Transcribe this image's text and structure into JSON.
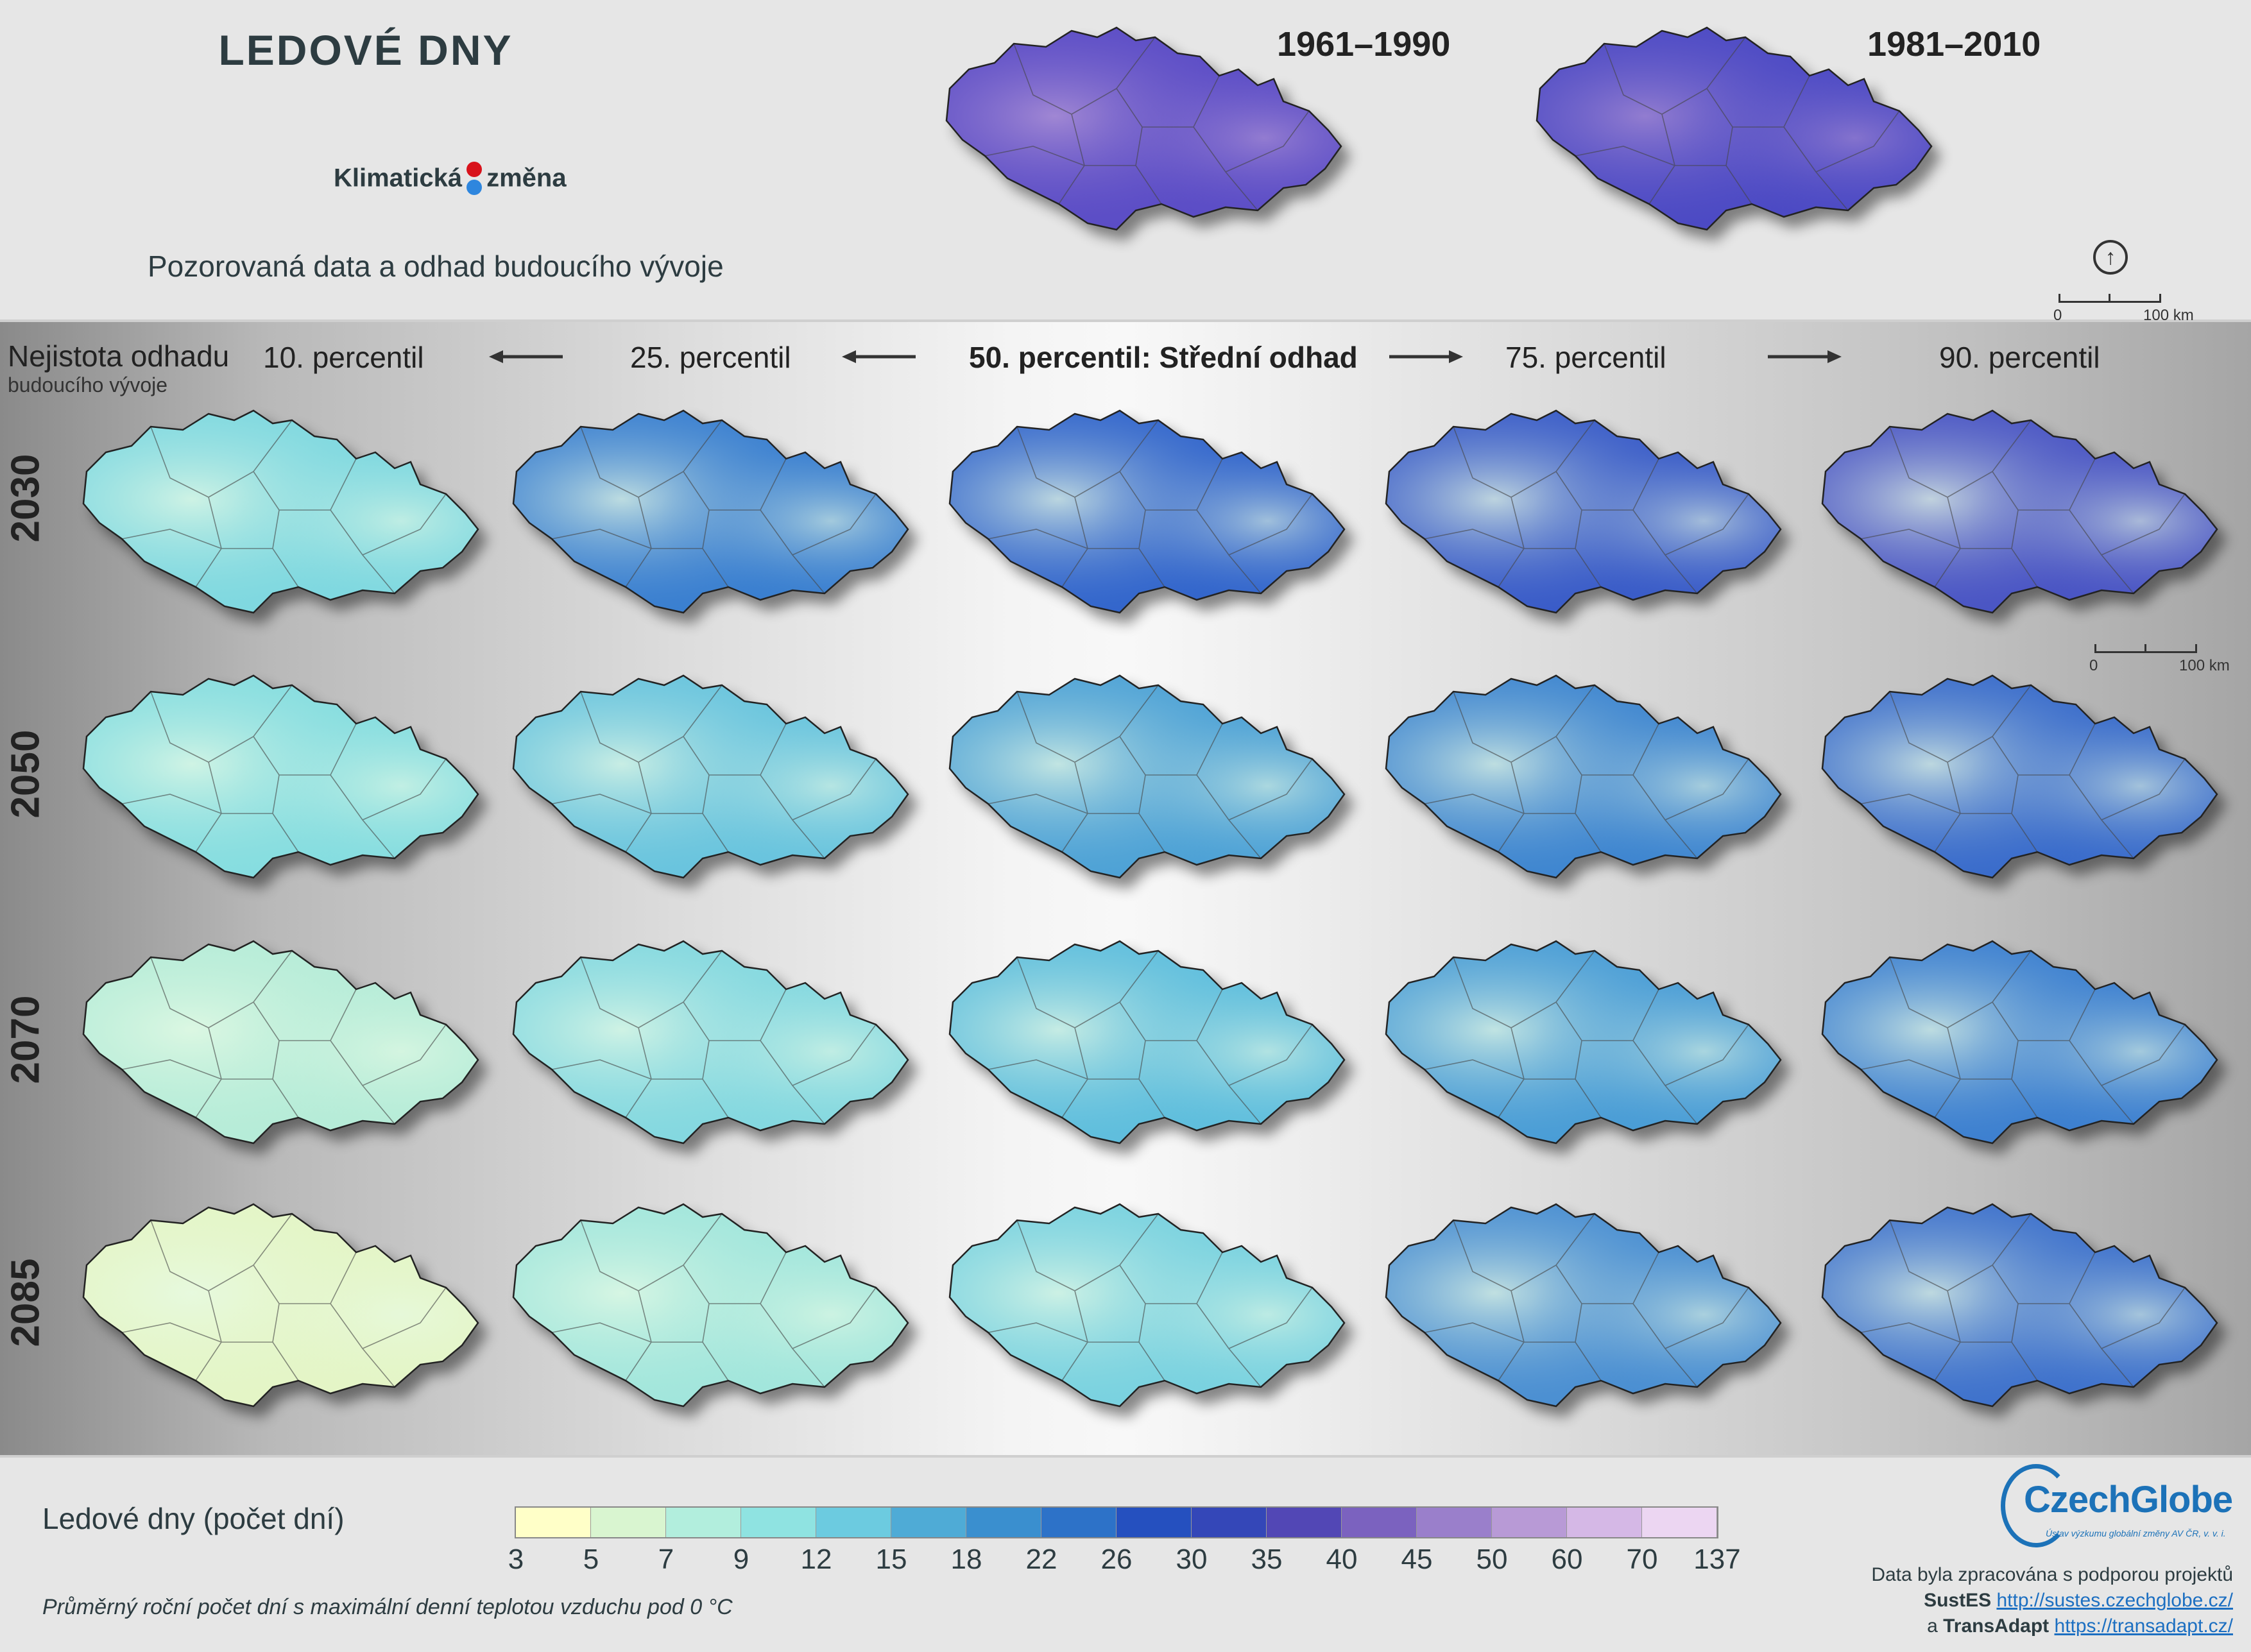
{
  "header": {
    "title": "LEDOVÉ DNY",
    "brand_left": "Klimatická",
    "brand_right": "změna",
    "subtitle": "Pozorovaná data a odhad budoucího vývoje",
    "periods": [
      "1961–1990",
      "1981–2010"
    ],
    "scale": {
      "zero": "0",
      "end": "100 km"
    }
  },
  "grid": {
    "uncertainty_label": "Nejistota odhadu",
    "uncertainty_sub": "budoucího vývoje",
    "percentiles": [
      "10. percentil",
      "25. percentil",
      "50. percentil: Střední odhad",
      "75. percentil",
      "90. percentil"
    ],
    "years": [
      "2030",
      "2050",
      "2070",
      "2085"
    ]
  },
  "legend": {
    "title": "Ledové dny (počet dní)",
    "note": "Průměrný roční počet dní s maximální denní teplotou vzduchu pod 0 °C",
    "ticks": [
      "3",
      "5",
      "7",
      "9",
      "12",
      "15",
      "18",
      "22",
      "26",
      "30",
      "35",
      "40",
      "45",
      "50",
      "60",
      "70",
      "137"
    ],
    "colors": [
      "#ffffc8",
      "#d9f5d0",
      "#b2eedd",
      "#8fe3e1",
      "#6ccbe0",
      "#4fabd6",
      "#3a8fcf",
      "#2d72c8",
      "#2550bf",
      "#3447b8",
      "#5247b5",
      "#7b62bf",
      "#9a7fcb",
      "#b89ad6",
      "#d5b8e6",
      "#ecd6f2"
    ]
  },
  "footer": {
    "logo_name": "CzechGlobe",
    "logo_sub": "Ústav výzkumu globální změny AV ČR, v. v. i.",
    "credit_line": "Data byla zpracována s podporou projektů",
    "project1": "SustES",
    "project1_url": "http://sustes.czechglobe.cz/",
    "conj": "a",
    "project2": "TransAdapt",
    "project2_url": "https://transadapt.cz/"
  },
  "maps": {
    "historical": [
      {
        "period": "1961–1990",
        "base": "#5b4dc6",
        "highlight": "#b79ad8"
      },
      {
        "period": "1981–2010",
        "base": "#4c4ac4",
        "highlight": "#a98dd4"
      }
    ],
    "projections": [
      [
        "#7fd8e0",
        "#3a7fd0",
        "#3366cc",
        "#3a5cc8",
        "#4a55c4"
      ],
      [
        "#86dde0",
        "#69c4de",
        "#4ea2d6",
        "#3f86d0",
        "#3a6ccb"
      ],
      [
        "#b6ecd8",
        "#84d8e0",
        "#5fbedd",
        "#4a9dd6",
        "#3d80d0"
      ],
      [
        "#e4f5c6",
        "#a2e6dc",
        "#7ad2e0",
        "#4b8fd2",
        "#3f72cc"
      ]
    ]
  }
}
